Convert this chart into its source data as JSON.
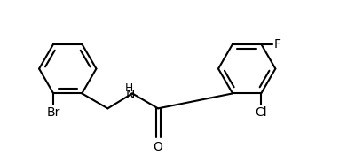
{
  "background": "#ffffff",
  "line_color": "#000000",
  "lw": 1.5,
  "fs": 10,
  "xlim": [
    0,
    8.5
  ],
  "ylim": [
    0,
    3.8
  ],
  "figsize": [
    4.0,
    1.76
  ],
  "dpi": 100
}
